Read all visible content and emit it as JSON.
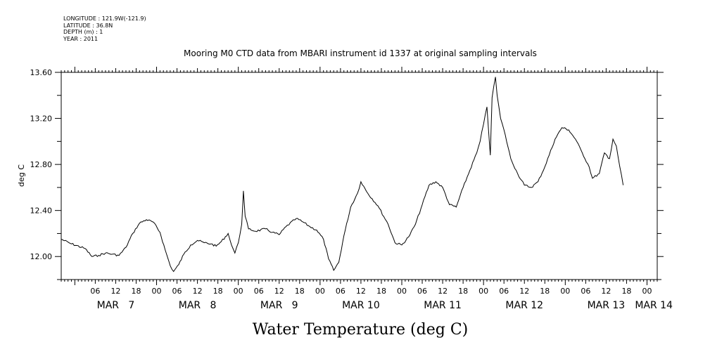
{
  "header": {
    "longitude": "LONGITUDE : 121.9W(-121.9)",
    "latitude": "LATITUDE : 36.8N",
    "depth": "DEPTH (m) : 1",
    "year": "YEAR : 2011"
  },
  "chart_data": {
    "type": "line",
    "title": "Mooring M0 CTD data from MBARI instrument id 1337 at original sampling intervals",
    "xlabel": "Water Temperature (deg C)",
    "ylabel": "deg C",
    "ylim": [
      11.8,
      13.6
    ],
    "xlim": [
      "2011-03-06T20:00",
      "2011-03-14T03:00"
    ],
    "y_ticks": [
      "12.00",
      "12.40",
      "12.80",
      "13.20",
      "13.60"
    ],
    "y_tick_values": [
      12.0,
      12.4,
      12.8,
      13.2,
      13.6
    ],
    "x_hour_ticks": [
      {
        "t": "2011-03-07T06:00",
        "label": "06"
      },
      {
        "t": "2011-03-07T12:00",
        "label": "12"
      },
      {
        "t": "2011-03-07T18:00",
        "label": "18"
      },
      {
        "t": "2011-03-08T00:00",
        "label": "00"
      },
      {
        "t": "2011-03-08T06:00",
        "label": "06"
      },
      {
        "t": "2011-03-08T12:00",
        "label": "12"
      },
      {
        "t": "2011-03-08T18:00",
        "label": "18"
      },
      {
        "t": "2011-03-09T00:00",
        "label": "00"
      },
      {
        "t": "2011-03-09T06:00",
        "label": "06"
      },
      {
        "t": "2011-03-09T12:00",
        "label": "12"
      },
      {
        "t": "2011-03-09T18:00",
        "label": "18"
      },
      {
        "t": "2011-03-10T00:00",
        "label": "00"
      },
      {
        "t": "2011-03-10T06:00",
        "label": "06"
      },
      {
        "t": "2011-03-10T12:00",
        "label": "12"
      },
      {
        "t": "2011-03-10T18:00",
        "label": "18"
      },
      {
        "t": "2011-03-11T00:00",
        "label": "00"
      },
      {
        "t": "2011-03-11T06:00",
        "label": "06"
      },
      {
        "t": "2011-03-11T12:00",
        "label": "12"
      },
      {
        "t": "2011-03-11T18:00",
        "label": "18"
      },
      {
        "t": "2011-03-12T00:00",
        "label": "00"
      },
      {
        "t": "2011-03-12T06:00",
        "label": "06"
      },
      {
        "t": "2011-03-12T12:00",
        "label": "12"
      },
      {
        "t": "2011-03-12T18:00",
        "label": "18"
      },
      {
        "t": "2011-03-13T00:00",
        "label": "00"
      },
      {
        "t": "2011-03-13T06:00",
        "label": "06"
      },
      {
        "t": "2011-03-13T12:00",
        "label": "12"
      },
      {
        "t": "2011-03-13T18:00",
        "label": "18"
      },
      {
        "t": "2011-03-14T00:00",
        "label": "00"
      }
    ],
    "x_day_labels": [
      {
        "t": "2011-03-07T12:00",
        "label": "MAR   7"
      },
      {
        "t": "2011-03-08T12:00",
        "label": "MAR   8"
      },
      {
        "t": "2011-03-09T12:00",
        "label": "MAR   9"
      },
      {
        "t": "2011-03-10T12:00",
        "label": "MAR 10"
      },
      {
        "t": "2011-03-11T12:00",
        "label": "MAR 11"
      },
      {
        "t": "2011-03-12T12:00",
        "label": "MAR 12"
      },
      {
        "t": "2011-03-13T12:00",
        "label": "MAR 13"
      },
      {
        "t": "2011-03-14T02:00",
        "label": "MAR 14"
      }
    ],
    "series": [
      {
        "color": "#000000",
        "points": [
          [
            "2011-03-06T20:00",
            12.15
          ],
          [
            "2011-03-06T23:00",
            12.11
          ],
          [
            "2011-03-07T03:00",
            12.07
          ],
          [
            "2011-03-07T05:00",
            12.0
          ],
          [
            "2011-03-07T07:00",
            12.01
          ],
          [
            "2011-03-07T09:00",
            12.03
          ],
          [
            "2011-03-07T11:00",
            12.02
          ],
          [
            "2011-03-07T13:00",
            12.01
          ],
          [
            "2011-03-07T15:00",
            12.08
          ],
          [
            "2011-03-07T17:00",
            12.2
          ],
          [
            "2011-03-07T19:00",
            12.29
          ],
          [
            "2011-03-07T21:00",
            12.32
          ],
          [
            "2011-03-07T23:00",
            12.3
          ],
          [
            "2011-03-08T01:00",
            12.21
          ],
          [
            "2011-03-08T02:30",
            12.06
          ],
          [
            "2011-03-08T04:00",
            11.92
          ],
          [
            "2011-03-08T05:00",
            11.87
          ],
          [
            "2011-03-08T06:30",
            11.93
          ],
          [
            "2011-03-08T08:00",
            12.02
          ],
          [
            "2011-03-08T10:00",
            12.1
          ],
          [
            "2011-03-08T12:00",
            12.14
          ],
          [
            "2011-03-08T14:00",
            12.12
          ],
          [
            "2011-03-08T16:00",
            12.11
          ],
          [
            "2011-03-08T17:30",
            12.09
          ],
          [
            "2011-03-08T19:00",
            12.13
          ],
          [
            "2011-03-08T21:00",
            12.2
          ],
          [
            "2011-03-08T22:00",
            12.1
          ],
          [
            "2011-03-08T23:00",
            12.03
          ],
          [
            "2011-03-09T00:00",
            12.12
          ],
          [
            "2011-03-09T01:00",
            12.28
          ],
          [
            "2011-03-09T01:30",
            12.57
          ],
          [
            "2011-03-09T02:00",
            12.35
          ],
          [
            "2011-03-09T03:00",
            12.24
          ],
          [
            "2011-03-09T05:00",
            12.22
          ],
          [
            "2011-03-09T08:00",
            12.24
          ],
          [
            "2011-03-09T10:00",
            12.21
          ],
          [
            "2011-03-09T12:00",
            12.19
          ],
          [
            "2011-03-09T14:00",
            12.26
          ],
          [
            "2011-03-09T17:00",
            12.33
          ],
          [
            "2011-03-09T19:00",
            12.3
          ],
          [
            "2011-03-09T21:00",
            12.26
          ],
          [
            "2011-03-09T23:00",
            12.23
          ],
          [
            "2011-03-10T01:00",
            12.15
          ],
          [
            "2011-03-10T02:30",
            11.98
          ],
          [
            "2011-03-10T04:00",
            11.88
          ],
          [
            "2011-03-10T05:30",
            11.95
          ],
          [
            "2011-03-10T07:00",
            12.18
          ],
          [
            "2011-03-10T09:00",
            12.43
          ],
          [
            "2011-03-10T11:00",
            12.55
          ],
          [
            "2011-03-10T12:00",
            12.65
          ],
          [
            "2011-03-10T14:00",
            12.55
          ],
          [
            "2011-03-10T17:00",
            12.44
          ],
          [
            "2011-03-10T20:00",
            12.28
          ],
          [
            "2011-03-10T22:00",
            12.12
          ],
          [
            "2011-03-11T00:00",
            12.1
          ],
          [
            "2011-03-11T02:00",
            12.17
          ],
          [
            "2011-03-11T04:00",
            12.28
          ],
          [
            "2011-03-11T06:00",
            12.45
          ],
          [
            "2011-03-11T08:00",
            12.62
          ],
          [
            "2011-03-11T10:00",
            12.65
          ],
          [
            "2011-03-11T12:00",
            12.6
          ],
          [
            "2011-03-11T14:00",
            12.45
          ],
          [
            "2011-03-11T16:00",
            12.43
          ],
          [
            "2011-03-11T18:00",
            12.6
          ],
          [
            "2011-03-11T20:00",
            12.75
          ],
          [
            "2011-03-11T22:00",
            12.9
          ],
          [
            "2011-03-11T23:00",
            13.0
          ],
          [
            "2011-03-12T00:00",
            13.15
          ],
          [
            "2011-03-12T01:00",
            13.3
          ],
          [
            "2011-03-12T02:00",
            12.88
          ],
          [
            "2011-03-12T02:30",
            13.38
          ],
          [
            "2011-03-12T03:30",
            13.56
          ],
          [
            "2011-03-12T04:00",
            13.4
          ],
          [
            "2011-03-12T05:00",
            13.2
          ],
          [
            "2011-03-12T06:00",
            13.1
          ],
          [
            "2011-03-12T08:00",
            12.85
          ],
          [
            "2011-03-12T10:00",
            12.72
          ],
          [
            "2011-03-12T12:00",
            12.62
          ],
          [
            "2011-03-12T14:00",
            12.6
          ],
          [
            "2011-03-12T16:00",
            12.65
          ],
          [
            "2011-03-12T18:00",
            12.78
          ],
          [
            "2011-03-12T21:00",
            13.02
          ],
          [
            "2011-03-12T23:00",
            13.12
          ],
          [
            "2011-03-13T01:00",
            13.1
          ],
          [
            "2011-03-13T03:00",
            13.02
          ],
          [
            "2011-03-13T05:00",
            12.9
          ],
          [
            "2011-03-13T07:00",
            12.78
          ],
          [
            "2011-03-13T08:00",
            12.68
          ],
          [
            "2011-03-13T10:00",
            12.72
          ],
          [
            "2011-03-13T11:30",
            12.9
          ],
          [
            "2011-03-13T13:00",
            12.85
          ],
          [
            "2011-03-13T14:00",
            13.02
          ],
          [
            "2011-03-13T15:00",
            12.96
          ],
          [
            "2011-03-13T16:00",
            12.78
          ],
          [
            "2011-03-13T17:00",
            12.62
          ]
        ]
      }
    ]
  }
}
